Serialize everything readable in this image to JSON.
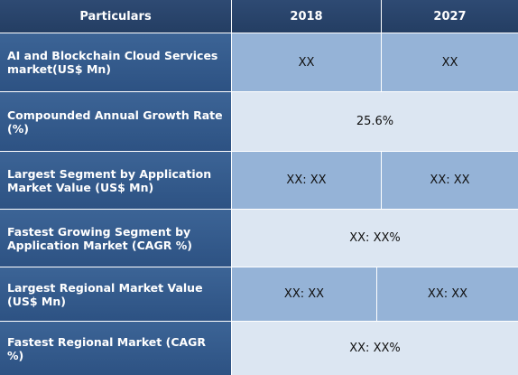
{
  "header": {
    "particulars": "Particulars",
    "year1": "2018",
    "year2": "2027"
  },
  "rows": [
    {
      "label": "AI and Blockchain Cloud Services market(US$ Mn)",
      "v2018": "XX",
      "v2027": "XX"
    },
    {
      "label": "Compounded Annual Growth Rate (%)",
      "merged": "25.6%"
    },
    {
      "label": "Largest Segment by Application Market Value (US$ Mn)",
      "v2018": "XX: XX",
      "v2027": "XX: XX"
    },
    {
      "label": "Fastest Growing Segment by Application Market (CAGR %)",
      "merged": "XX: XX%"
    },
    {
      "label": "Largest Regional Market Value (US$ Mn)",
      "v2018": "XX: XX",
      "v2027": "XX: XX"
    },
    {
      "label": "Fastest Regional Market (CAGR %)",
      "merged": "XX: XX%"
    }
  ]
}
